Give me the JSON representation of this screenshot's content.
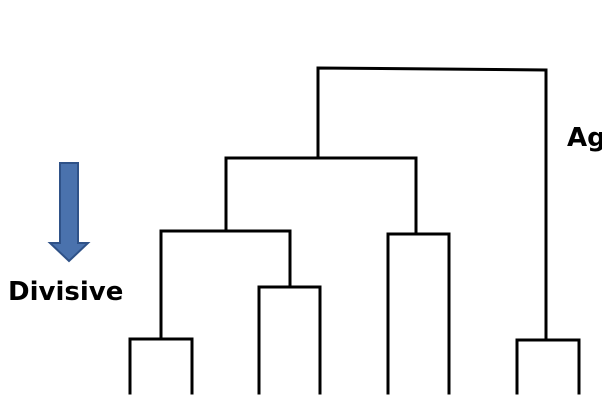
{
  "labels": {
    "divisive": "Divisive",
    "agglomerative_partial": "Ag"
  },
  "colors": {
    "arrow_fill": "#4a72ad",
    "arrow_stroke": "#2f5288",
    "line": "#000000",
    "background": "#ffffff"
  },
  "icons": {
    "divisive_arrow": "arrow-down-icon"
  }
}
